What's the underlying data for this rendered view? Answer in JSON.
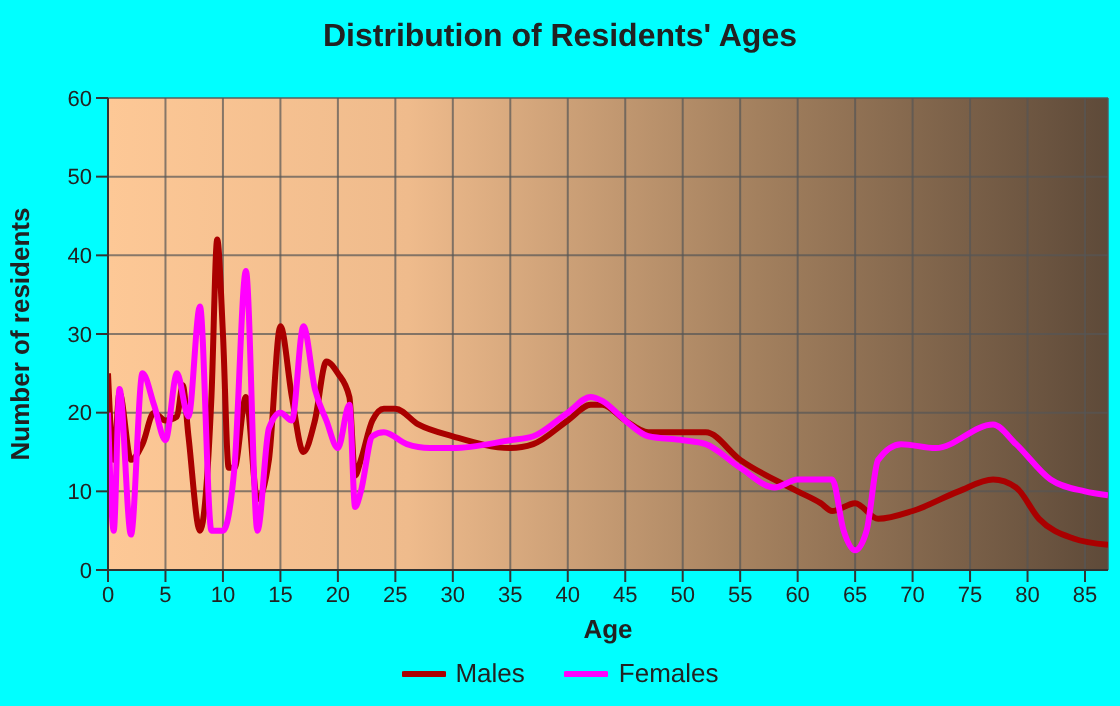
{
  "chart_data": {
    "type": "line",
    "title": "Distribution of Residents' Ages",
    "xlabel": "Age",
    "ylabel": "Number of residents",
    "xlim": [
      0,
      87
    ],
    "ylim": [
      0,
      60
    ],
    "xticks": [
      0,
      5,
      10,
      15,
      20,
      25,
      30,
      35,
      40,
      45,
      50,
      55,
      60,
      65,
      70,
      75,
      80,
      85
    ],
    "yticks": [
      0,
      10,
      20,
      30,
      40,
      50,
      60
    ],
    "grid": true,
    "legend": "bottom",
    "marker": "none",
    "line_style": "solid",
    "series": [
      {
        "name": "Males",
        "color": "#aa0000",
        "x": [
          0,
          0.5,
          1,
          2,
          3,
          4,
          5,
          6,
          6.5,
          7,
          8,
          9,
          9.5,
          10,
          10.5,
          11,
          12,
          13,
          14,
          15,
          16,
          17,
          18,
          19,
          20,
          21,
          21.5,
          22,
          23,
          24,
          25,
          27,
          30,
          35,
          37,
          40,
          42,
          43,
          45,
          47,
          50,
          52,
          55,
          60,
          62,
          63,
          65,
          67,
          70,
          74,
          77,
          79,
          81,
          84,
          87
        ],
        "values": [
          25,
          14,
          22.5,
          14,
          16,
          20,
          19,
          19.5,
          23.5,
          17,
          5,
          22,
          42,
          30,
          13,
          13,
          22,
          9,
          14,
          31,
          22,
          15,
          19,
          26.5,
          25,
          22,
          12,
          14,
          19,
          20.5,
          20.5,
          18.5,
          17,
          15.5,
          16,
          19,
          21,
          21,
          19,
          17.5,
          17.5,
          17.5,
          14,
          10,
          8.5,
          7.5,
          8.5,
          6.5,
          7.5,
          10,
          11.5,
          10.5,
          6.5,
          4,
          3.2
        ]
      },
      {
        "name": "Females",
        "color": "#ff00ff",
        "x": [
          0,
          0.5,
          1,
          2,
          3,
          4,
          5,
          6,
          7,
          8,
          9,
          10,
          11,
          12,
          13,
          14,
          15,
          16,
          17,
          18,
          19,
          20,
          21,
          21.5,
          22,
          23,
          24,
          26,
          28,
          30,
          35,
          37,
          40,
          42,
          43,
          45,
          47,
          50,
          52,
          55,
          58,
          60,
          63,
          64,
          65,
          66,
          67,
          69,
          72,
          77,
          79,
          82,
          85,
          87
        ],
        "values": [
          20,
          5,
          23,
          4.5,
          25,
          21,
          16.5,
          25,
          19.5,
          33.5,
          5,
          5,
          13,
          38,
          5,
          18,
          20,
          19,
          31,
          23,
          19,
          15.5,
          21,
          8,
          10,
          17,
          17.5,
          16,
          15.5,
          15.5,
          16.5,
          17,
          20,
          22,
          21.5,
          19,
          17,
          16.5,
          16,
          13,
          10.5,
          11.5,
          11.5,
          5,
          2.5,
          5,
          14,
          16,
          15.5,
          18.5,
          16,
          11.5,
          10,
          9.5
        ]
      }
    ]
  }
}
